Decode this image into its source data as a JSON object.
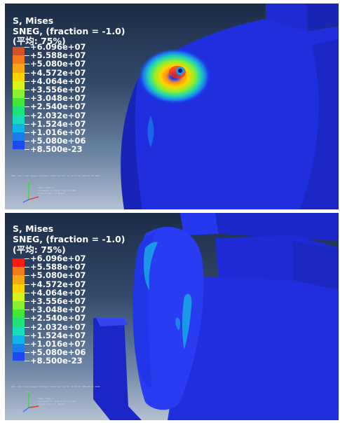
{
  "colors": {
    "viewport_top": "#1b2c46",
    "viewport_bottom": "#b4c1d1",
    "model_blue": "#1f2fe0",
    "legend_text": "#ffffff"
  },
  "panels": [
    {
      "title": "S, Mises",
      "subtitle": "SNEG, (fraction = -1.0)",
      "average": "(平均: 75%)",
      "info_line": "ODB: Job-1.odb    Abaqus/Standard 2019    Sun Jan 17 18:25:12 GMT+08:00 2020",
      "step_lines": [
        "Step: Step-1",
        "Increment 1: Step Time = 1.000",
        "Primary Var: S, Mises"
      ],
      "legend": {
        "swatches": [
          "#d2522a",
          "#f07a1c",
          "#f5a915",
          "#ffd400",
          "#d6f51e",
          "#8af02d",
          "#46e53a",
          "#23e17a",
          "#17dcbf",
          "#12b3e8",
          "#1b7cf0",
          "#1c4af0",
          "#1f1fe6"
        ],
        "labels": [
          "+6.096e+07",
          "+5.588e+07",
          "+5.080e+07",
          "+4.572e+07",
          "+4.064e+07",
          "+3.556e+07",
          "+3.048e+07",
          "+2.540e+07",
          "+2.032e+07",
          "+1.524e+07",
          "+1.016e+07",
          "+5.080e+06",
          "+8.500e-23"
        ]
      }
    },
    {
      "title": "S, Mises",
      "subtitle": "SNEG, (fraction = -1.0)",
      "average": "(平均: 75%)",
      "info_line": "ODB: Job-1.odb    Abaqus/Standard 2019    Sun Jan 17 18:28:44 GMT+08:00 2020",
      "step_lines": [
        "Step: Step-1",
        "Increment 1: Step Time = 1.000",
        "Primary Var: S, Mises"
      ],
      "legend": {
        "swatches": [
          "#ff1a0f",
          "#f07a1c",
          "#f5a915",
          "#ffd400",
          "#d6f51e",
          "#8af02d",
          "#46e53a",
          "#23e17a",
          "#17dcbf",
          "#12b3e8",
          "#1b7cf0",
          "#1c4af0",
          "#1f1fe6"
        ],
        "labels": [
          "+6.096e+07",
          "+5.588e+07",
          "+5.080e+07",
          "+4.572e+07",
          "+4.064e+07",
          "+3.556e+07",
          "+3.048e+07",
          "+2.540e+07",
          "+2.032e+07",
          "+1.524e+07",
          "+1.016e+07",
          "+5.080e+06",
          "+8.500e-23"
        ]
      }
    }
  ],
  "axes": {
    "x": "X",
    "y": "Y",
    "z": "Z"
  }
}
